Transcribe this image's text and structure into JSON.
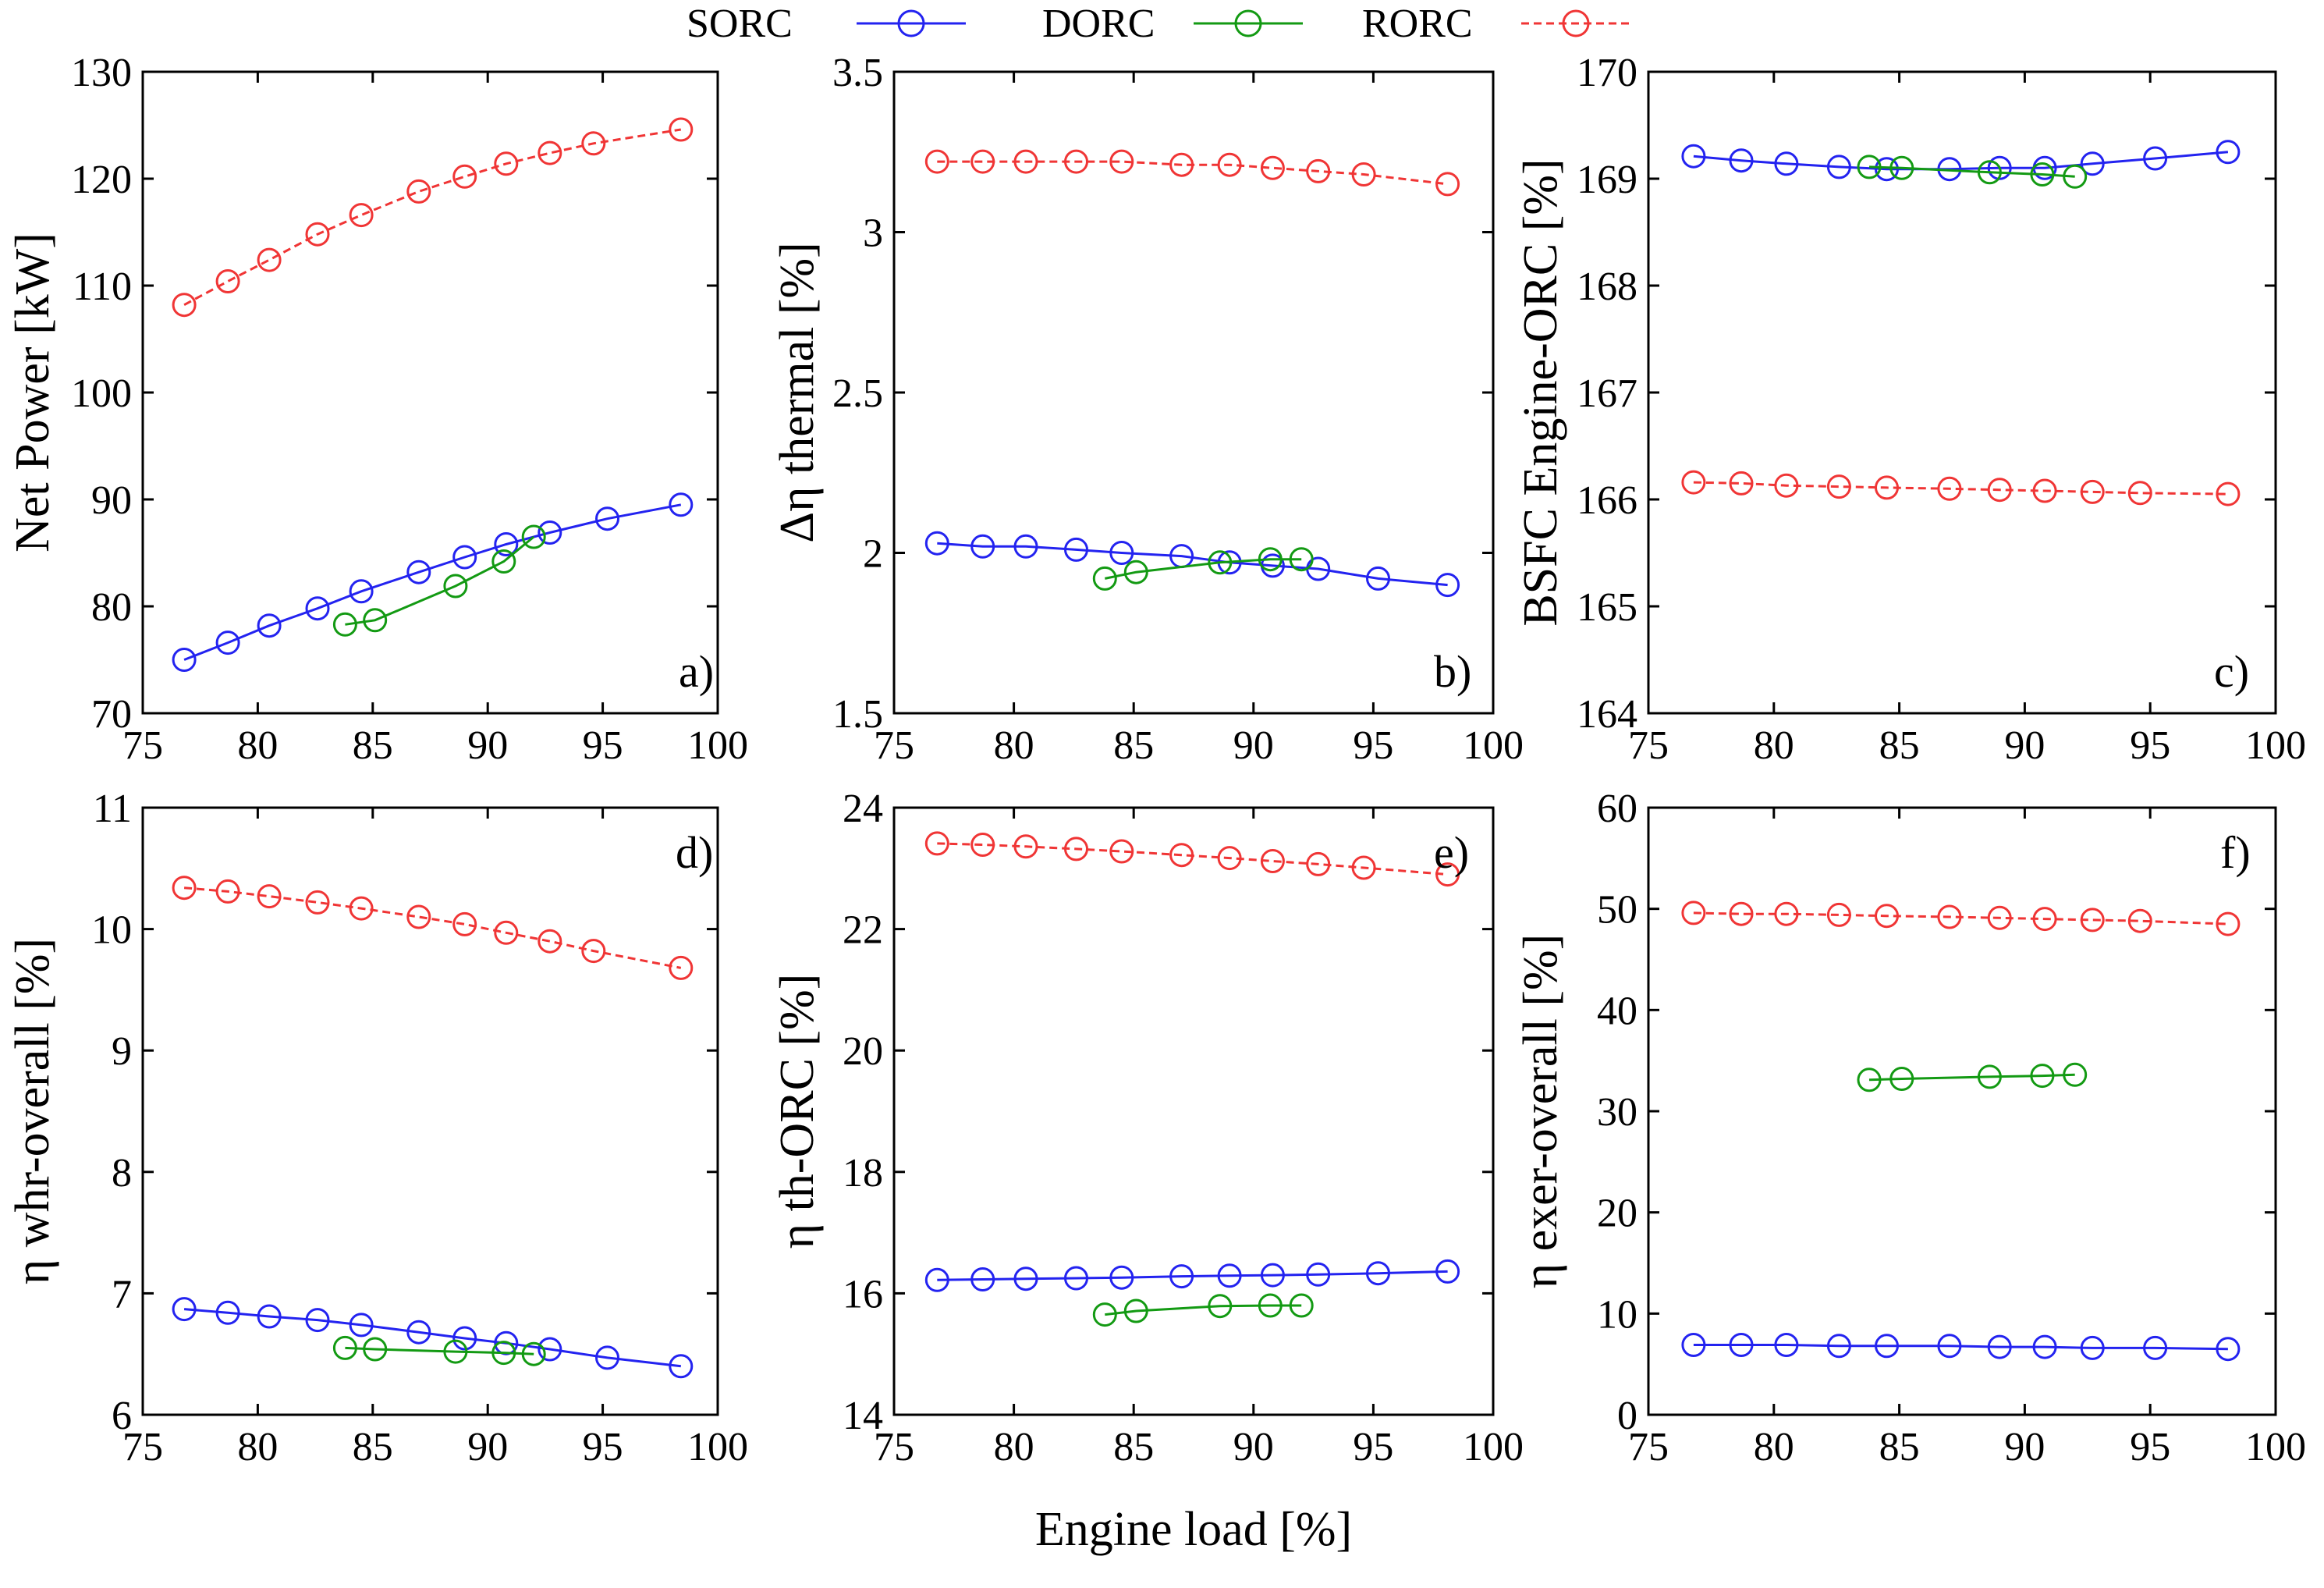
{
  "colors": {
    "SORC": "#2323f0",
    "DORC": "#139a13",
    "RORC": "#f03535"
  },
  "legend": [
    {
      "name": "SORC",
      "color": "#2323f0",
      "dashed": false
    },
    {
      "name": "DORC",
      "color": "#139a13",
      "dashed": false
    },
    {
      "name": "RORC",
      "color": "#f03535",
      "dashed": true
    }
  ],
  "shared_xlabel": "Engine load [%]",
  "chart_data": [
    {
      "type": "line",
      "panel": "a)",
      "ylabel": "Net Power [kW]",
      "xlim": [
        75,
        100
      ],
      "ylim": [
        70,
        130
      ],
      "xticks": [
        75,
        80,
        85,
        90,
        95,
        100
      ],
      "yticks": [
        70,
        80,
        90,
        100,
        110,
        120,
        130
      ],
      "series": [
        {
          "name": "SORC",
          "x": [
            76.8,
            78.7,
            80.5,
            82.6,
            84.5,
            87,
            89,
            90.8,
            92.7,
            95.2,
            98.4
          ],
          "y": [
            75,
            76.6,
            78.2,
            79.8,
            81.4,
            83.2,
            84.6,
            85.8,
            86.9,
            88.2,
            89.5
          ]
        },
        {
          "name": "DORC",
          "x": [
            83.8,
            85.1,
            88.6,
            90.7,
            92
          ],
          "y": [
            78.3,
            78.7,
            81.9,
            84.2,
            86.5
          ]
        },
        {
          "name": "RORC",
          "x": [
            76.8,
            78.7,
            80.5,
            82.6,
            84.5,
            87,
            89,
            90.8,
            92.7,
            94.6,
            98.4
          ],
          "y": [
            108.2,
            110.4,
            112.4,
            114.8,
            116.6,
            118.8,
            120.2,
            121.4,
            122.4,
            123.3,
            124.6
          ]
        }
      ]
    },
    {
      "type": "line",
      "panel": "b)",
      "ylabel": "Δη thermal [%]",
      "xlim": [
        75,
        100
      ],
      "ylim": [
        1.5,
        3.5
      ],
      "xticks": [
        75,
        80,
        85,
        90,
        95,
        100
      ],
      "yticks": [
        1.5,
        2,
        2.5,
        3,
        3.5
      ],
      "ytick_labels": [
        "1.5",
        "2",
        "2.5",
        "3",
        "3.5"
      ],
      "series": [
        {
          "name": "SORC",
          "x": [
            76.8,
            78.7,
            80.5,
            82.6,
            84.5,
            87,
            89,
            90.8,
            92.7,
            95.2,
            98.1
          ],
          "y": [
            2.03,
            2.02,
            2.02,
            2.01,
            2.0,
            1.99,
            1.97,
            1.96,
            1.95,
            1.92,
            1.9
          ]
        },
        {
          "name": "DORC",
          "x": [
            83.8,
            85.1,
            88.6,
            90.7,
            92
          ],
          "y": [
            1.92,
            1.94,
            1.97,
            1.98,
            1.98
          ]
        },
        {
          "name": "RORC",
          "x": [
            76.8,
            78.7,
            80.5,
            82.6,
            84.5,
            87,
            89,
            90.8,
            92.7,
            94.6,
            98.1
          ],
          "y": [
            3.22,
            3.22,
            3.22,
            3.22,
            3.22,
            3.21,
            3.21,
            3.2,
            3.19,
            3.18,
            3.15
          ]
        }
      ]
    },
    {
      "type": "line",
      "panel": "c)",
      "ylabel": "BSFC Engine-ORC [%]",
      "xlim": [
        75,
        100
      ],
      "ylim": [
        164,
        170
      ],
      "xticks": [
        75,
        80,
        85,
        90,
        95,
        100
      ],
      "yticks": [
        164,
        165,
        166,
        167,
        168,
        169,
        170
      ],
      "series": [
        {
          "name": "SORC",
          "x": [
            76.8,
            78.7,
            80.5,
            82.6,
            84.5,
            87,
            89,
            90.8,
            92.7,
            95.2,
            98.1
          ],
          "y": [
            169.21,
            169.17,
            169.14,
            169.11,
            169.09,
            169.09,
            169.1,
            169.1,
            169.14,
            169.19,
            169.25
          ]
        },
        {
          "name": "DORC",
          "x": [
            83.8,
            85.1,
            88.6,
            90.7,
            92
          ],
          "y": [
            169.11,
            169.1,
            169.06,
            169.04,
            169.02
          ]
        },
        {
          "name": "RORC",
          "x": [
            76.8,
            78.7,
            80.5,
            82.6,
            84.5,
            87,
            89,
            90.8,
            92.7,
            94.6,
            98.1
          ],
          "y": [
            166.16,
            166.15,
            166.13,
            166.12,
            166.11,
            166.1,
            166.09,
            166.08,
            166.07,
            166.06,
            166.05
          ]
        }
      ]
    },
    {
      "type": "line",
      "panel": "d)",
      "ylabel": "η whr-overall [%]",
      "xlim": [
        75,
        100
      ],
      "ylim": [
        6,
        11
      ],
      "xticks": [
        75,
        80,
        85,
        90,
        95,
        100
      ],
      "yticks": [
        6,
        7,
        8,
        9,
        10,
        11
      ],
      "series": [
        {
          "name": "SORC",
          "x": [
            76.8,
            78.7,
            80.5,
            82.6,
            84.5,
            87,
            89,
            90.8,
            92.7,
            95.2,
            98.4
          ],
          "y": [
            6.87,
            6.84,
            6.81,
            6.78,
            6.74,
            6.68,
            6.63,
            6.59,
            6.54,
            6.47,
            6.4
          ]
        },
        {
          "name": "DORC",
          "x": [
            83.8,
            85.1,
            88.6,
            90.7,
            92
          ],
          "y": [
            6.55,
            6.54,
            6.52,
            6.51,
            6.5
          ]
        },
        {
          "name": "RORC",
          "x": [
            76.8,
            78.7,
            80.5,
            82.6,
            84.5,
            87,
            89,
            90.8,
            92.7,
            94.6,
            98.4
          ],
          "y": [
            10.34,
            10.31,
            10.27,
            10.22,
            10.17,
            10.1,
            10.04,
            9.97,
            9.9,
            9.82,
            9.68
          ]
        }
      ]
    },
    {
      "type": "line",
      "panel": "e)",
      "ylabel": "η th-ORC [%]",
      "xlim": [
        75,
        100
      ],
      "ylim": [
        14,
        24
      ],
      "xticks": [
        75,
        80,
        85,
        90,
        95,
        100
      ],
      "yticks": [
        14,
        16,
        18,
        20,
        22,
        24
      ],
      "series": [
        {
          "name": "SORC",
          "x": [
            76.8,
            78.7,
            80.5,
            82.6,
            84.5,
            87,
            89,
            90.8,
            92.7,
            95.2,
            98.1
          ],
          "y": [
            16.22,
            16.23,
            16.24,
            16.25,
            16.26,
            16.28,
            16.29,
            16.3,
            16.31,
            16.33,
            16.36
          ]
        },
        {
          "name": "DORC",
          "x": [
            83.8,
            85.1,
            88.6,
            90.7,
            92
          ],
          "y": [
            15.65,
            15.71,
            15.79,
            15.8,
            15.8
          ]
        },
        {
          "name": "RORC",
          "x": [
            76.8,
            78.7,
            80.5,
            82.6,
            84.5,
            87,
            89,
            90.8,
            92.7,
            94.6,
            98.1
          ],
          "y": [
            23.41,
            23.39,
            23.36,
            23.32,
            23.28,
            23.22,
            23.17,
            23.12,
            23.07,
            23.01,
            22.9
          ]
        }
      ]
    },
    {
      "type": "line",
      "panel": "f)",
      "ylabel": "η exer-overall [%]",
      "xlim": [
        75,
        100
      ],
      "ylim": [
        0,
        60
      ],
      "xticks": [
        75,
        80,
        85,
        90,
        95,
        100
      ],
      "yticks": [
        0,
        10,
        20,
        30,
        40,
        50,
        60
      ],
      "series": [
        {
          "name": "SORC",
          "x": [
            76.8,
            78.7,
            80.5,
            82.6,
            84.5,
            87,
            89,
            90.8,
            92.7,
            95.2,
            98.1
          ],
          "y": [
            6.9,
            6.9,
            6.9,
            6.8,
            6.8,
            6.8,
            6.7,
            6.7,
            6.6,
            6.6,
            6.5
          ]
        },
        {
          "name": "DORC",
          "x": [
            83.8,
            85.1,
            88.6,
            90.7,
            92
          ],
          "y": [
            33.1,
            33.2,
            33.4,
            33.5,
            33.6
          ]
        },
        {
          "name": "RORC",
          "x": [
            76.8,
            78.7,
            80.5,
            82.6,
            84.5,
            87,
            89,
            90.8,
            92.7,
            94.6,
            98.1
          ],
          "y": [
            49.6,
            49.5,
            49.5,
            49.4,
            49.3,
            49.2,
            49.1,
            49.0,
            48.9,
            48.8,
            48.5
          ]
        }
      ]
    }
  ]
}
